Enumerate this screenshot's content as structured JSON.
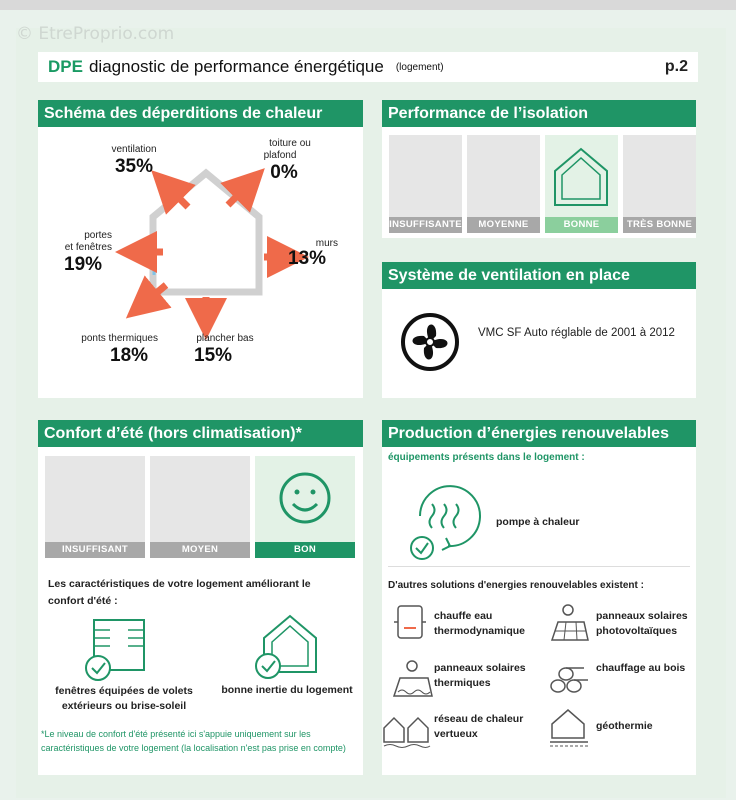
{
  "watermark": "© EtreProprio.com",
  "header": {
    "dpe": "DPE",
    "title": "diagnostic de performance énergétique",
    "sub": "(logement)",
    "page": "p.2"
  },
  "deperditions": {
    "title": "Schéma des déperditions de chaleur",
    "items": [
      {
        "label1": "ventilation",
        "label2": "",
        "pct": "35%"
      },
      {
        "label1": "toiture ou",
        "label2": "plafond",
        "pct": "0%"
      },
      {
        "label1": "portes",
        "label2": "et fenêtres",
        "pct": "19%"
      },
      {
        "label1": "murs",
        "label2": "",
        "pct": "13%"
      },
      {
        "label1": "ponts thermiques",
        "label2": "",
        "pct": "18%"
      },
      {
        "label1": "plancher bas",
        "label2": "",
        "pct": "15%"
      }
    ]
  },
  "isolation": {
    "title": "Performance de l’isolation",
    "levels": [
      "INSUFFISANTE",
      "MOYENNE",
      "BONNE",
      "TRÈS BONNE"
    ],
    "selected": "BONNE"
  },
  "ventilation": {
    "title": "Système de ventilation en place",
    "text": "VMC SF Auto réglable de 2001 à 2012"
  },
  "confort": {
    "title": "Confort d’été (hors climatisation)*",
    "levels": [
      "INSUFFISANT",
      "MOYEN",
      "BON"
    ],
    "selected": "BON",
    "intro": "Les caractéristiques de votre logement améliorant le confort d'été :",
    "feature1": "fenêtres équipées de volets extérieurs ou brise-soleil",
    "feature2": "bonne inertie du logement",
    "note": "*Le niveau de confort d'été présenté ici s'appuie uniquement sur les caractéristiques de votre logement (la localisation n'est pas prise en compte)"
  },
  "renouvelables": {
    "title": "Production d’énergies renouvelables",
    "present_label": "équipements présents dans le logement :",
    "present_item": "pompe à chaleur",
    "others_label": "D'autres solutions d'energies renouvelables existent :",
    "others": [
      "chauffe eau thermodynamique",
      "panneaux solaires photovoltaïques",
      "panneaux solaires thermiques",
      "chauffage au bois",
      "réseau de chaleur vertueux",
      "géothermie"
    ]
  },
  "colors": {
    "accent": "#1f9566",
    "light_accent": "#8bcf9d",
    "arrow": "#ef6a4a"
  }
}
